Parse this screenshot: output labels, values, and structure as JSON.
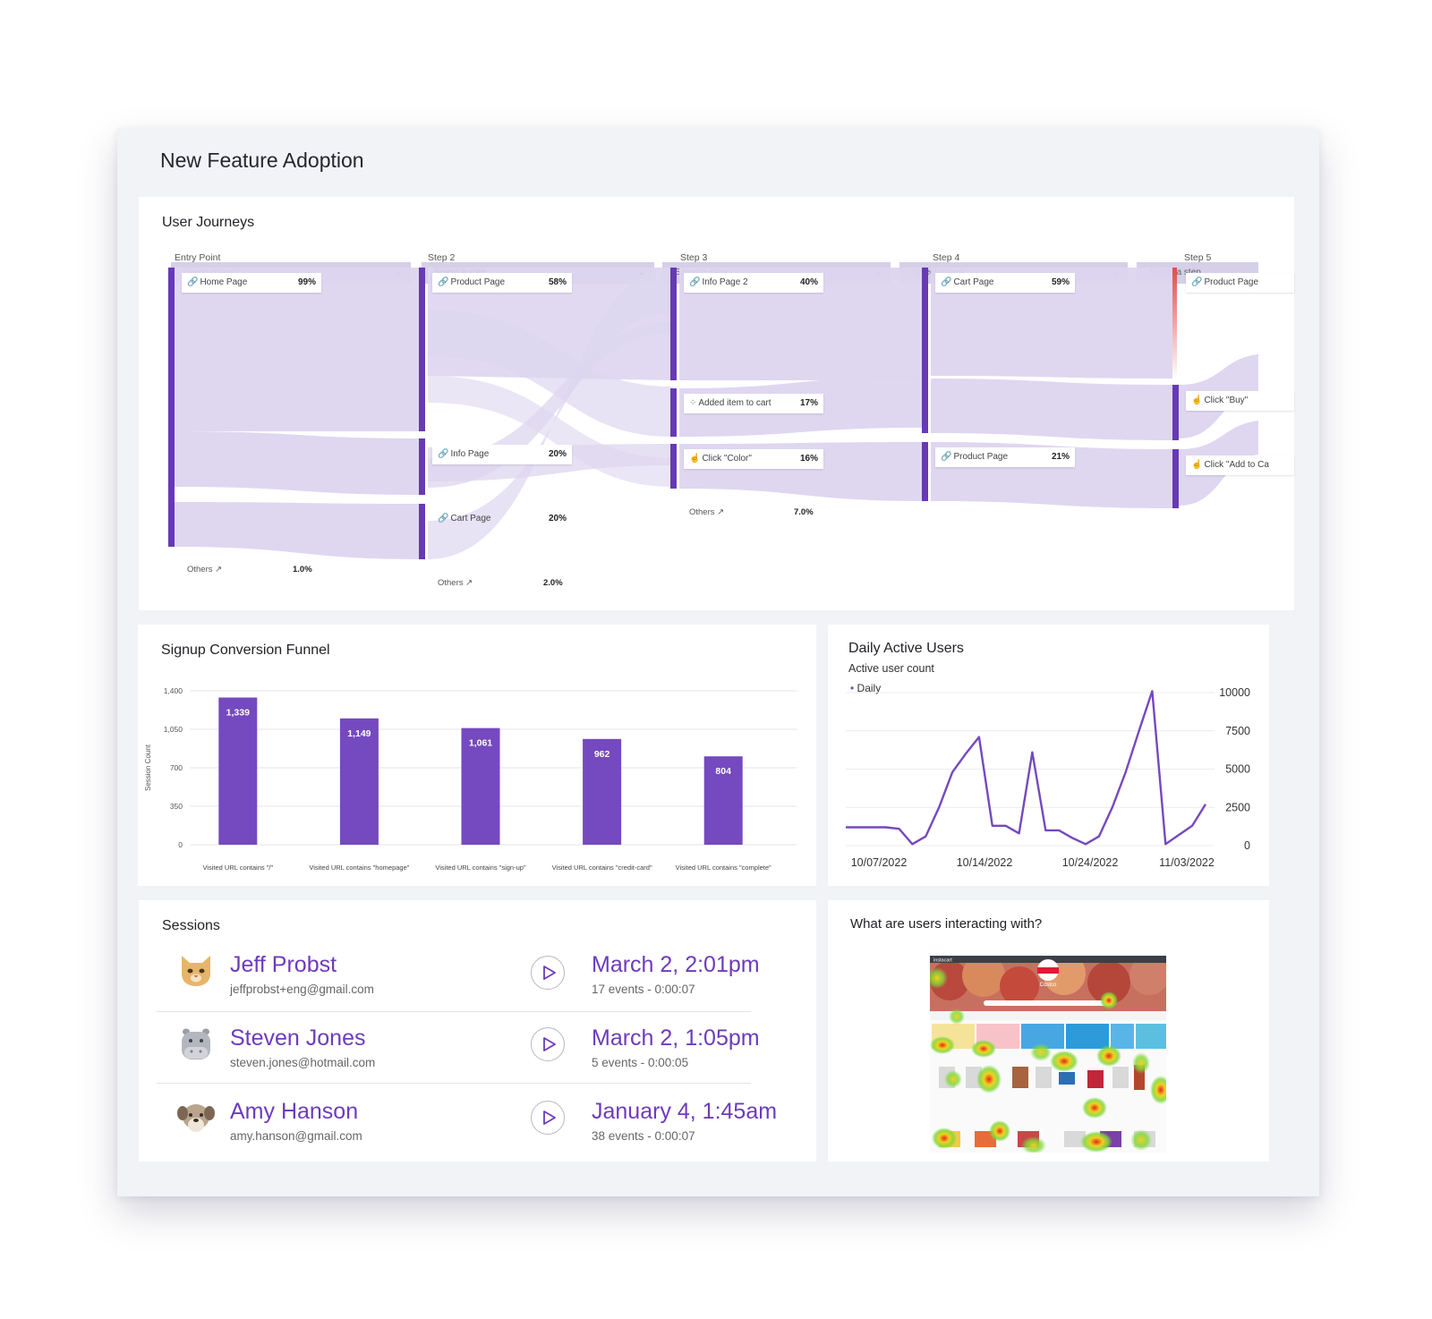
{
  "dashboard": {
    "title": "New Feature Adoption"
  },
  "journeys": {
    "title": "User Journeys",
    "select_placeholder": "Select a step",
    "steps": [
      "Entry Point",
      "Step 2",
      "Step 3",
      "Step 4",
      "Step 5"
    ],
    "nodes": {
      "home": {
        "label": "Home Page",
        "pct": "99%"
      },
      "entry_others": {
        "label": "Others",
        "pct": "1.0%"
      },
      "s2_product": {
        "label": "Product Page",
        "pct": "58%"
      },
      "s2_info": {
        "label": "Info Page",
        "pct": "20%"
      },
      "s2_cart": {
        "label": "Cart Page",
        "pct": "20%"
      },
      "s2_others": {
        "label": "Others",
        "pct": "2.0%"
      },
      "s3_info2": {
        "label": "Info Page 2",
        "pct": "40%"
      },
      "s3_added": {
        "label": "Added item to cart",
        "pct": "17%"
      },
      "s3_color": {
        "label": "Click \"Color\"",
        "pct": "16%"
      },
      "s3_others": {
        "label": "Others",
        "pct": "7.0%"
      },
      "s4_cart": {
        "label": "Cart Page",
        "pct": "59%"
      },
      "s4_product": {
        "label": "Product Page",
        "pct": "21%"
      },
      "s5_product": {
        "label": "Product Page"
      },
      "s5_buy": {
        "label": "Click \"Buy\""
      },
      "s5_addto": {
        "label": "Click \"Add to Ca"
      }
    }
  },
  "funnel": {
    "title": "Signup Conversion Funnel",
    "chart_data": {
      "type": "bar",
      "categories": [
        "Visited URL contains \"/\"",
        "Visited URL contains \"homepage\"",
        "Visited URL contains \"sign-up\"",
        "Visited URL contains \"credit-card\"",
        "Visited URL contains \"complete\""
      ],
      "values": [
        1339,
        1149,
        1061,
        962,
        804
      ],
      "value_labels": [
        "1,339",
        "1,149",
        "1,061",
        "962",
        "804"
      ],
      "ylabel": "Session Count",
      "yticks": [
        "0",
        "350",
        "700",
        "1,050",
        "1,400"
      ],
      "ylim": [
        0,
        1400
      ],
      "color": "#7549bf",
      "grid": true
    }
  },
  "dau": {
    "title": "Daily Active Users",
    "subtitle": "Active user count",
    "chart_data": {
      "type": "line",
      "series": [
        {
          "name": "Daily",
          "values": [
            1200,
            1200,
            1200,
            1200,
            1100,
            100,
            600,
            2500,
            4800,
            6000,
            7100,
            1300,
            1300,
            800,
            6100,
            1000,
            1000,
            500,
            100,
            600,
            2500,
            4800,
            7500,
            10100,
            100,
            700,
            1300,
            2700
          ]
        }
      ],
      "xticks": [
        "10/07/2022",
        "10/14/2022",
        "10/24/2022",
        "11/03/2022"
      ],
      "yticks": [
        "0",
        "2500",
        "5000",
        "7500",
        "10000"
      ],
      "ylim": [
        0,
        10000
      ],
      "legend": "top-left",
      "color": "#7549bf"
    }
  },
  "sessions": {
    "title": "Sessions",
    "items": [
      {
        "name": "Jeff Probst",
        "email": "jeffprobst+eng@gmail.com",
        "date": "March 2, 2:01pm",
        "events": "17 events - 0:00:07",
        "avatar": "cat-avatar-icon"
      },
      {
        "name": "Steven Jones",
        "email": "steven.jones@hotmail.com",
        "date": "March 2, 1:05pm",
        "events": "5 events - 0:00:05",
        "avatar": "hippo-avatar-icon"
      },
      {
        "name": "Amy Hanson",
        "email": "amy.hanson@gmail.com",
        "date": "January 4, 1:45am",
        "events": "38 events - 0:00:07",
        "avatar": "dog-avatar-icon"
      }
    ]
  },
  "heatmap": {
    "title": "What are users interacting with?",
    "brand": "instacart",
    "store": "Costco"
  }
}
